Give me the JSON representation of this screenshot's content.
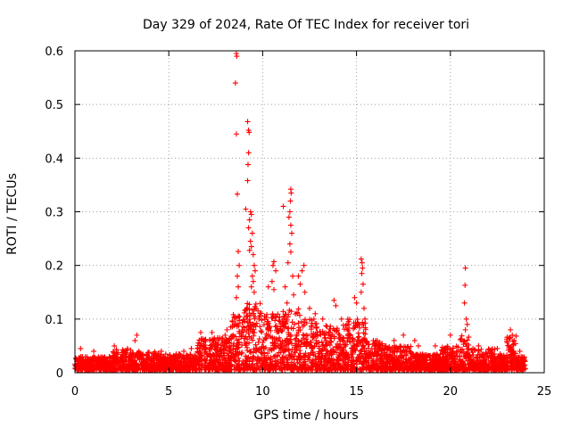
{
  "chart_data": {
    "type": "scatter",
    "title": "Day 329 of 2024, Rate Of TEC Index for receiver tori",
    "xlabel": "GPS time / hours",
    "ylabel": "ROTI / TECUs",
    "xlim": [
      0,
      25
    ],
    "ylim": [
      0,
      0.6
    ],
    "xticks": [
      0,
      5,
      10,
      15,
      20,
      25
    ],
    "yticks": [
      0,
      0.1,
      0.2,
      0.3,
      0.4,
      0.5,
      0.6
    ],
    "xtick_labels": [
      "0",
      "5",
      "10",
      "15",
      "20",
      "25"
    ],
    "ytick_labels": [
      "0",
      "0.1",
      "0.2",
      "0.3",
      "0.4",
      "0.5",
      "0.6"
    ],
    "grid": true,
    "marker": "+",
    "color": "#ff0000",
    "series": [
      {
        "name": "ROTI",
        "points": [
          [
            8.6,
            0.595
          ],
          [
            8.62,
            0.59
          ],
          [
            8.55,
            0.54
          ],
          [
            8.6,
            0.445
          ],
          [
            8.65,
            0.333
          ],
          [
            9.2,
            0.468
          ],
          [
            9.25,
            0.452
          ],
          [
            9.28,
            0.448
          ],
          [
            9.25,
            0.41
          ],
          [
            9.22,
            0.388
          ],
          [
            9.2,
            0.358
          ],
          [
            9.1,
            0.305
          ],
          [
            9.35,
            0.3
          ],
          [
            9.4,
            0.295
          ],
          [
            9.3,
            0.285
          ],
          [
            9.25,
            0.27
          ],
          [
            9.45,
            0.26
          ],
          [
            9.35,
            0.245
          ],
          [
            9.4,
            0.235
          ],
          [
            9.3,
            0.228
          ],
          [
            8.7,
            0.226
          ],
          [
            8.75,
            0.2
          ],
          [
            8.65,
            0.18
          ],
          [
            8.7,
            0.16
          ],
          [
            8.6,
            0.14
          ],
          [
            9.5,
            0.22
          ],
          [
            9.55,
            0.2
          ],
          [
            9.6,
            0.19
          ],
          [
            9.45,
            0.18
          ],
          [
            9.5,
            0.17
          ],
          [
            9.4,
            0.16
          ],
          [
            9.55,
            0.15
          ],
          [
            9.65,
            0.12
          ],
          [
            9.8,
            0.1
          ],
          [
            10.6,
            0.207
          ],
          [
            10.55,
            0.2
          ],
          [
            10.7,
            0.19
          ],
          [
            10.5,
            0.17
          ],
          [
            10.6,
            0.155
          ],
          [
            11.1,
            0.31
          ],
          [
            11.5,
            0.342
          ],
          [
            11.52,
            0.335
          ],
          [
            11.48,
            0.32
          ],
          [
            11.45,
            0.3
          ],
          [
            11.4,
            0.29
          ],
          [
            11.5,
            0.275
          ],
          [
            11.55,
            0.26
          ],
          [
            11.45,
            0.24
          ],
          [
            11.5,
            0.225
          ],
          [
            11.35,
            0.205
          ],
          [
            11.6,
            0.18
          ],
          [
            11.2,
            0.16
          ],
          [
            11.65,
            0.145
          ],
          [
            11.3,
            0.13
          ],
          [
            10.3,
            0.16
          ],
          [
            12.2,
            0.2
          ],
          [
            12.1,
            0.19
          ],
          [
            11.9,
            0.18
          ],
          [
            12.0,
            0.165
          ],
          [
            12.25,
            0.15
          ],
          [
            12.5,
            0.12
          ],
          [
            12.8,
            0.11
          ],
          [
            13.2,
            0.1
          ],
          [
            13.8,
            0.135
          ],
          [
            13.9,
            0.125
          ],
          [
            14.2,
            0.1
          ],
          [
            14.5,
            0.09
          ],
          [
            14.9,
            0.14
          ],
          [
            15.0,
            0.13
          ],
          [
            15.25,
            0.212
          ],
          [
            15.3,
            0.205
          ],
          [
            15.32,
            0.195
          ],
          [
            15.28,
            0.185
          ],
          [
            15.35,
            0.165
          ],
          [
            15.25,
            0.15
          ],
          [
            15.4,
            0.12
          ],
          [
            15.45,
            0.1
          ],
          [
            17.5,
            0.07
          ],
          [
            18.1,
            0.06
          ],
          [
            18.3,
            0.05
          ],
          [
            19.2,
            0.05
          ],
          [
            19.7,
            0.045
          ],
          [
            20.0,
            0.07
          ],
          [
            20.8,
            0.195
          ],
          [
            20.78,
            0.163
          ],
          [
            20.75,
            0.13
          ],
          [
            20.85,
            0.1
          ],
          [
            20.9,
            0.09
          ],
          [
            20.8,
            0.08
          ],
          [
            21.5,
            0.05
          ],
          [
            21.2,
            0.045
          ],
          [
            23.2,
            0.08
          ],
          [
            23.3,
            0.07
          ],
          [
            23.4,
            0.06
          ],
          [
            3.3,
            0.07
          ],
          [
            3.2,
            0.06
          ],
          [
            2.1,
            0.05
          ],
          [
            2.8,
            0.045
          ],
          [
            1.0,
            0.04
          ],
          [
            0.3,
            0.045
          ],
          [
            4.6,
            0.04
          ],
          [
            6.7,
            0.075
          ],
          [
            7.3,
            0.075
          ],
          [
            7.6,
            0.065
          ],
          [
            8.1,
            0.08
          ],
          [
            8.3,
            0.085
          ],
          [
            8.0,
            0.07
          ],
          [
            5.8,
            0.04
          ],
          [
            6.2,
            0.045
          ],
          [
            16.5,
            0.05
          ],
          [
            17.0,
            0.06
          ],
          [
            16.0,
            0.045
          ],
          [
            22.5,
            0.045
          ],
          [
            23.7,
            0.04
          ]
        ]
      }
    ],
    "baseline_noise_bands": [
      [
        0.0,
        0.5,
        0.005,
        0.03
      ],
      [
        0.5,
        2.0,
        0.005,
        0.03
      ],
      [
        2.0,
        3.0,
        0.005,
        0.045
      ],
      [
        3.0,
        4.5,
        0.005,
        0.04
      ],
      [
        4.5,
        6.5,
        0.005,
        0.035
      ],
      [
        6.5,
        8.3,
        0.005,
        0.065
      ],
      [
        8.3,
        9.0,
        0.005,
        0.11
      ],
      [
        9.0,
        10.0,
        0.005,
        0.13
      ],
      [
        10.0,
        11.0,
        0.005,
        0.11
      ],
      [
        11.0,
        12.0,
        0.005,
        0.12
      ],
      [
        12.0,
        13.0,
        0.005,
        0.1
      ],
      [
        13.0,
        14.5,
        0.005,
        0.09
      ],
      [
        14.5,
        15.5,
        0.005,
        0.1
      ],
      [
        15.5,
        16.5,
        0.005,
        0.06
      ],
      [
        16.5,
        18.0,
        0.005,
        0.05
      ],
      [
        18.0,
        19.5,
        0.005,
        0.035
      ],
      [
        19.5,
        20.5,
        0.005,
        0.05
      ],
      [
        20.5,
        21.0,
        0.005,
        0.07
      ],
      [
        21.0,
        22.5,
        0.005,
        0.045
      ],
      [
        22.5,
        23.0,
        0.005,
        0.035
      ],
      [
        23.0,
        23.5,
        0.005,
        0.07
      ],
      [
        23.5,
        24.0,
        0.005,
        0.03
      ]
    ]
  }
}
